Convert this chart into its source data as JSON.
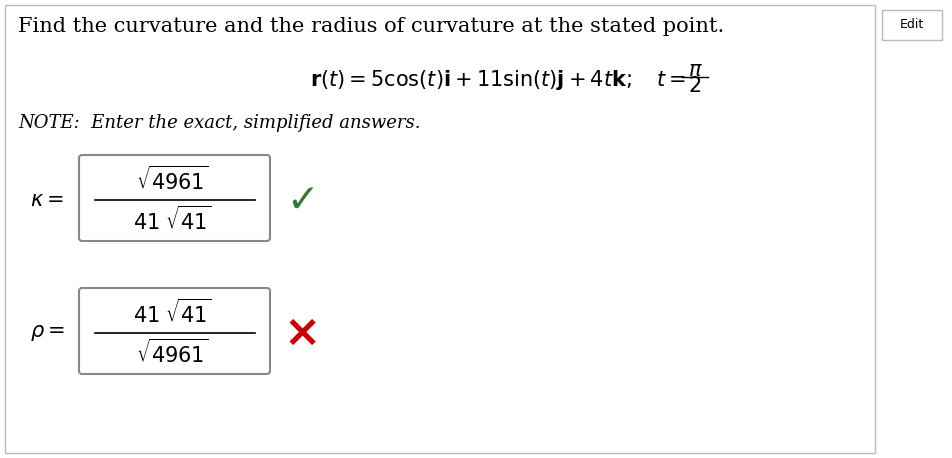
{
  "title": "Find the curvature and the radius of curvature at the stated point.",
  "note": "NOTE:  Enter the exact, simplified answers.",
  "check_color": "#2d7a2d",
  "cross_color": "#cc0000",
  "edit_label": "Edit",
  "bg_color": "#ffffff",
  "border_color": "#bbbbbb",
  "text_color": "#000000",
  "box_edge_color": "#888888",
  "figsize": [
    9.52,
    4.58
  ],
  "dpi": 100
}
